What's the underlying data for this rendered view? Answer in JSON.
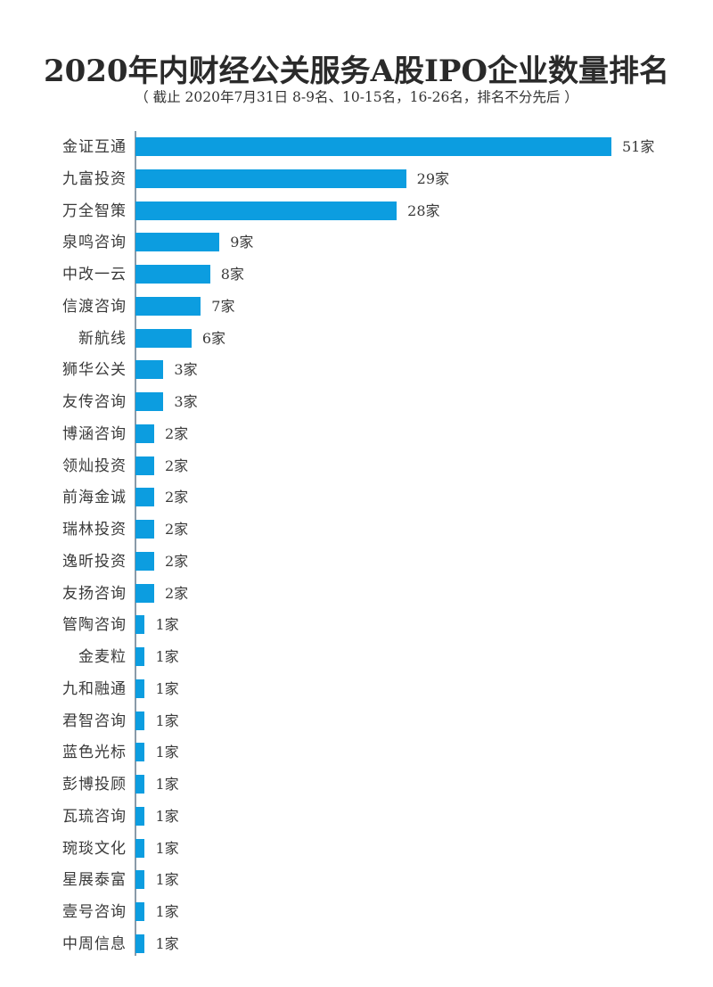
{
  "header": {
    "title": "2020年内财经公关服务A股IPO企业数量排名",
    "subtitle": "（ 截止 2020年7月31日 8-9名、10-15名，16-26名，排名不分先后 ）"
  },
  "unit": "家",
  "bar_color": "#0c9de0",
  "rows": [
    {
      "label": "金证互通",
      "value": 51,
      "text": "51家"
    },
    {
      "label": "九富投资",
      "value": 29,
      "text": "29家"
    },
    {
      "label": "万全智策",
      "value": 28,
      "text": "28家"
    },
    {
      "label": "泉鸣咨询",
      "value": 9,
      "text": "9家"
    },
    {
      "label": "中改一云",
      "value": 8,
      "text": "8家"
    },
    {
      "label": "信渡咨询",
      "value": 7,
      "text": "7家"
    },
    {
      "label": "新航线",
      "value": 6,
      "text": "6家"
    },
    {
      "label": "狮华公关",
      "value": 3,
      "text": "3家"
    },
    {
      "label": "友传咨询",
      "value": 3,
      "text": "3家"
    },
    {
      "label": "博涵咨询",
      "value": 2,
      "text": "2家"
    },
    {
      "label": "领灿投资",
      "value": 2,
      "text": "2家"
    },
    {
      "label": "前海金诚",
      "value": 2,
      "text": "2家"
    },
    {
      "label": "瑞林投资",
      "value": 2,
      "text": "2家"
    },
    {
      "label": "逸昕投资",
      "value": 2,
      "text": "2家"
    },
    {
      "label": "友扬咨询",
      "value": 2,
      "text": "2家"
    },
    {
      "label": "管陶咨询",
      "value": 1,
      "text": "1家"
    },
    {
      "label": "金麦粒",
      "value": 1,
      "text": "1家"
    },
    {
      "label": "九和融通",
      "value": 1,
      "text": "1家"
    },
    {
      "label": "君智咨询",
      "value": 1,
      "text": "1家"
    },
    {
      "label": "蓝色光标",
      "value": 1,
      "text": "1家"
    },
    {
      "label": "彭博投顾",
      "value": 1,
      "text": "1家"
    },
    {
      "label": "瓦琉咨询",
      "value": 1,
      "text": "1家"
    },
    {
      "label": "琬琰文化",
      "value": 1,
      "text": "1家"
    },
    {
      "label": "星展泰富",
      "value": 1,
      "text": "1家"
    },
    {
      "label": "壹号咨询",
      "value": 1,
      "text": "1家"
    },
    {
      "label": "中周信息",
      "value": 1,
      "text": "1家"
    }
  ],
  "chart_data": {
    "type": "bar",
    "orientation": "horizontal",
    "title": "2020年内财经公关服务A股IPO企业数量排名",
    "subtitle": "（ 截止 2020年7月31日 8-9名、10-15名，16-26名，排名不分先后 ）",
    "xlabel": "",
    "ylabel": "",
    "unit": "家",
    "grid": false,
    "legend": null,
    "xlim": [
      0,
      51
    ],
    "categories": [
      "金证互通",
      "九富投资",
      "万全智策",
      "泉鸣咨询",
      "中改一云",
      "信渡咨询",
      "新航线",
      "狮华公关",
      "友传咨询",
      "博涵咨询",
      "领灿投资",
      "前海金诚",
      "瑞林投资",
      "逸昕投资",
      "友扬咨询",
      "管陶咨询",
      "金麦粒",
      "九和融通",
      "君智咨询",
      "蓝色光标",
      "彭博投顾",
      "瓦琉咨询",
      "琬琰文化",
      "星展泰富",
      "壹号咨询",
      "中周信息"
    ],
    "values": [
      51,
      29,
      28,
      9,
      8,
      7,
      6,
      3,
      3,
      2,
      2,
      2,
      2,
      2,
      2,
      1,
      1,
      1,
      1,
      1,
      1,
      1,
      1,
      1,
      1,
      1
    ],
    "data_labels": [
      "51家",
      "29家",
      "28家",
      "9家",
      "8家",
      "7家",
      "6家",
      "3家",
      "3家",
      "2家",
      "2家",
      "2家",
      "2家",
      "2家",
      "2家",
      "1家",
      "1家",
      "1家",
      "1家",
      "1家",
      "1家",
      "1家",
      "1家",
      "1家",
      "1家",
      "1家"
    ]
  }
}
